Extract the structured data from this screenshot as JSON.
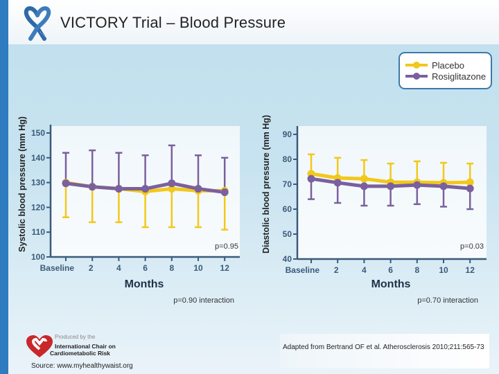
{
  "slide": {
    "title": "VICTORY Trial – Blood Pressure",
    "logo_icon": "ribbon-tape-heart-icon",
    "legend": {
      "items": [
        {
          "label": "Placebo",
          "color": "#f2c81a"
        },
        {
          "label": "Rosiglitazone",
          "color": "#7a609e"
        }
      ]
    },
    "footer": {
      "produced_by": "Produced by the",
      "org_line1": "International Chair on",
      "org_line2": "Cardiometabolic Risk",
      "source": "Source: www.myhealthywaist.org",
      "citation": "Adapted from Bertrand OF et al. Atherosclerosis 2010;211:565-73"
    }
  },
  "chart_data": [
    {
      "type": "line",
      "title": "",
      "xlabel": "Months",
      "ylabel": "Systolic blood pressure (mm Hg)",
      "x": [
        "Baseline",
        "2",
        "4",
        "6",
        "8",
        "10",
        "12"
      ],
      "ylim": [
        100,
        150
      ],
      "yticks": [
        100,
        110,
        120,
        130,
        140,
        150
      ],
      "grid": false,
      "legend_position": "top-right",
      "p_value": "p=0.95",
      "p_interaction": "p=0.90 interaction",
      "series": [
        {
          "name": "Placebo",
          "color": "#f2c81a",
          "values": [
            130,
            128.3,
            127.5,
            126.4,
            127.5,
            126.7,
            126.7
          ],
          "error_lower": [
            116,
            114,
            114,
            112,
            112,
            112,
            111
          ]
        },
        {
          "name": "Rosiglitazone",
          "color": "#7a609e",
          "values": [
            129.7,
            128.3,
            127.5,
            127.5,
            129.7,
            127.5,
            126.1
          ],
          "error_upper": [
            142,
            143,
            142,
            141,
            145,
            141,
            140
          ]
        }
      ]
    },
    {
      "type": "line",
      "title": "",
      "xlabel": "Months",
      "ylabel": "Diastolic blood pressure (mm Hg)",
      "x": [
        "Baseline",
        "2",
        "4",
        "6",
        "8",
        "10",
        "12"
      ],
      "ylim": [
        40,
        90
      ],
      "yticks": [
        40,
        50,
        60,
        70,
        80,
        90
      ],
      "grid": false,
      "legend_position": "top-right",
      "p_value": "p=0.03",
      "p_interaction": "p=0.70 interaction",
      "series": [
        {
          "name": "Placebo",
          "color": "#f2c81a",
          "values": [
            74.2,
            72.5,
            72.2,
            70.8,
            70.8,
            70.6,
            70.8
          ],
          "error_upper": [
            82,
            80.6,
            79.7,
            78.3,
            79.2,
            78.6,
            78.3
          ]
        },
        {
          "name": "Rosiglitazone",
          "color": "#7a609e",
          "values": [
            72.2,
            70.6,
            69.2,
            69.2,
            69.7,
            69.2,
            68.3
          ],
          "error_lower": [
            64,
            62.5,
            61.4,
            61.4,
            62,
            61,
            60
          ]
        }
      ]
    }
  ]
}
